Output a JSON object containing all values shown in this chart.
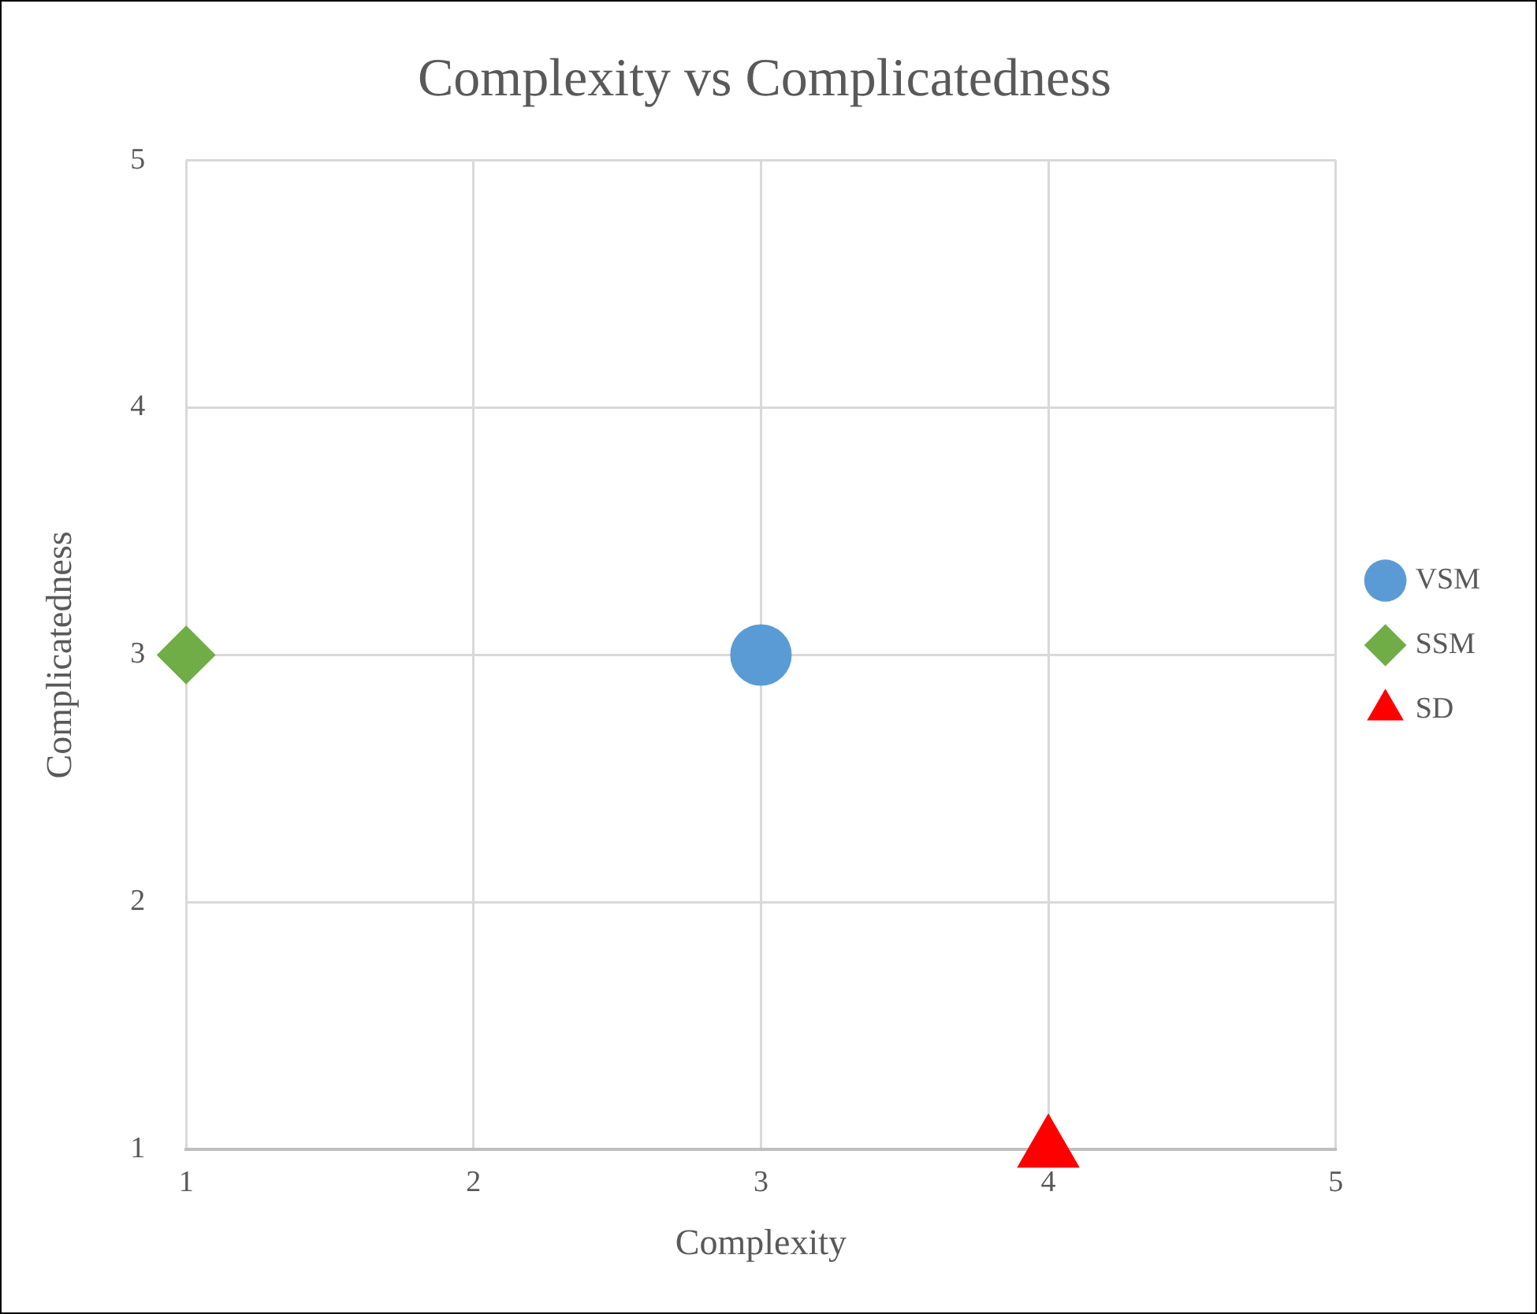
{
  "chart_data": {
    "type": "scatter",
    "title": "Complexity vs Complicatedness",
    "xlabel": "Complexity",
    "ylabel": "Complicatedness",
    "xlim": [
      1,
      5
    ],
    "ylim": [
      1,
      5
    ],
    "xticks": [
      1,
      2,
      3,
      4,
      5
    ],
    "yticks": [
      1,
      2,
      3,
      4,
      5
    ],
    "grid": true,
    "legend": "right",
    "series": [
      {
        "name": "VSM",
        "color": "#5b9bd5",
        "marker": "circle",
        "x": [
          3
        ],
        "values": [
          3
        ]
      },
      {
        "name": "SSM",
        "color": "#70ad47",
        "marker": "diamond",
        "x": [
          1
        ],
        "values": [
          3
        ]
      },
      {
        "name": "SD",
        "color": "#ff0000",
        "marker": "triangle",
        "x": [
          4
        ],
        "values": [
          1
        ]
      }
    ]
  }
}
